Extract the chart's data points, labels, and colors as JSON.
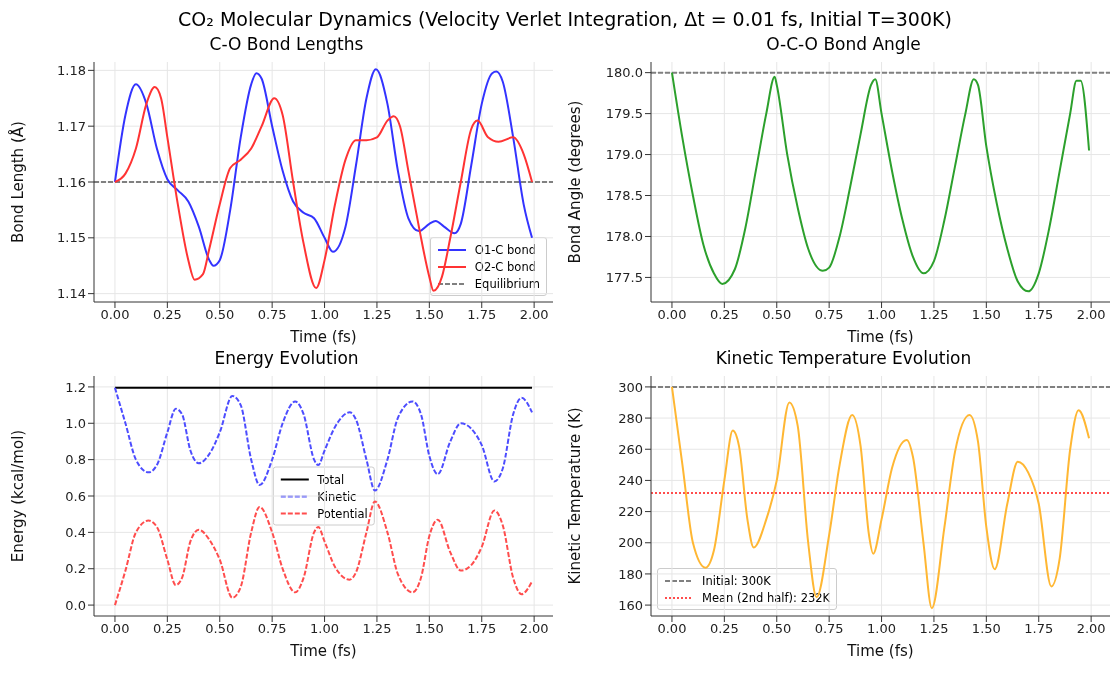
{
  "chart_data": [
    {
      "type": "line",
      "title": "C-O Bond Lengths",
      "xlabel": "Time (fs)",
      "ylabel": "Bond Length (Å)",
      "annotations": [
        "CO₂ Molecular Dynamics (Velocity Verlet Integration, Δt = 0.01 fs, Initial T=300K)"
      ],
      "xlim": [
        -0.1,
        2.09
      ],
      "xticks": [
        {
          "value": 0,
          "label": "0.00"
        },
        {
          "value": 0.25,
          "label": "0.25"
        },
        {
          "value": 0.5,
          "label": "0.50"
        },
        {
          "value": 0.75,
          "label": "0.75"
        },
        {
          "value": 1,
          "label": "1.00"
        },
        {
          "value": 1.25,
          "label": "1.25"
        },
        {
          "value": 1.5,
          "label": "1.50"
        },
        {
          "value": 1.75,
          "label": "1.75"
        },
        {
          "value": 2,
          "label": "2.00"
        }
      ],
      "ylim": [
        1.1385,
        1.1815
      ],
      "yticks": [
        {
          "value": 1.14,
          "label": "1.14"
        },
        {
          "value": 1.15,
          "label": "1.15"
        },
        {
          "value": 1.16,
          "label": "1.16"
        },
        {
          "value": 1.17,
          "label": "1.17"
        },
        {
          "value": 1.18,
          "label": "1.18"
        }
      ],
      "grid": true,
      "legend": "bottom right",
      "series": [
        {
          "name": "O1-C bond",
          "color": "#3333ff",
          "x": [
            0,
            0.05,
            0.1,
            0.15,
            0.2,
            0.25,
            0.3,
            0.35,
            0.4,
            0.45,
            0.47,
            0.5,
            0.55,
            0.6,
            0.65,
            0.675,
            0.7,
            0.75,
            0.8,
            0.85,
            0.9,
            0.95,
            1.0,
            1.04,
            1.1,
            1.15,
            1.2,
            1.245,
            1.3,
            1.35,
            1.4,
            1.45,
            1.5,
            1.53,
            1.57,
            1.62,
            1.65,
            1.7,
            1.75,
            1.8,
            1.82,
            1.85,
            1.9,
            1.95,
            1.99
          ],
          "values": [
            1.16,
            1.172,
            1.1775,
            1.174,
            1.166,
            1.1605,
            1.1585,
            1.1565,
            1.152,
            1.146,
            1.145,
            1.146,
            1.155,
            1.168,
            1.1775,
            1.1795,
            1.1785,
            1.17,
            1.162,
            1.1565,
            1.1545,
            1.1535,
            1.15,
            1.1475,
            1.152,
            1.163,
            1.175,
            1.1802,
            1.174,
            1.162,
            1.1535,
            1.1512,
            1.1525,
            1.153,
            1.152,
            1.1508,
            1.1525,
            1.163,
            1.174,
            1.1795,
            1.1798,
            1.178,
            1.168,
            1.156,
            1.15
          ]
        },
        {
          "name": "O2-C bond",
          "color": "#ff3333",
          "x": [
            0,
            0.05,
            0.1,
            0.15,
            0.19,
            0.22,
            0.25,
            0.3,
            0.35,
            0.38,
            0.42,
            0.45,
            0.5,
            0.55,
            0.6,
            0.65,
            0.7,
            0.76,
            0.8,
            0.85,
            0.9,
            0.96,
            1.0,
            1.05,
            1.1,
            1.15,
            1.2,
            1.25,
            1.3,
            1.33,
            1.36,
            1.4,
            1.45,
            1.5,
            1.52,
            1.56,
            1.6,
            1.65,
            1.7,
            1.73,
            1.78,
            1.83,
            1.9,
            1.95,
            1.99
          ],
          "values": [
            1.16,
            1.1615,
            1.166,
            1.174,
            1.177,
            1.175,
            1.168,
            1.156,
            1.146,
            1.1425,
            1.1435,
            1.148,
            1.156,
            1.1625,
            1.164,
            1.166,
            1.17,
            1.175,
            1.172,
            1.16,
            1.149,
            1.141,
            1.146,
            1.156,
            1.164,
            1.1675,
            1.1675,
            1.168,
            1.171,
            1.1718,
            1.17,
            1.162,
            1.152,
            1.143,
            1.1405,
            1.143,
            1.15,
            1.16,
            1.1695,
            1.171,
            1.168,
            1.1672,
            1.168,
            1.165,
            1.16
          ]
        }
      ],
      "ref_lines": [
        {
          "axis": "y",
          "value": 1.16,
          "label": "Equilibrium",
          "color": "#808080",
          "line_style": "dashed"
        }
      ]
    },
    {
      "type": "line",
      "title": "O-C-O Bond Angle",
      "xlabel": "Time (fs)",
      "ylabel": "Bond Angle (degrees)",
      "xlim": [
        -0.1,
        2.09
      ],
      "xticks": [
        {
          "value": 0,
          "label": "0.00"
        },
        {
          "value": 0.25,
          "label": "0.25"
        },
        {
          "value": 0.5,
          "label": "0.50"
        },
        {
          "value": 0.75,
          "label": "0.75"
        },
        {
          "value": 1,
          "label": "1.00"
        },
        {
          "value": 1.25,
          "label": "1.25"
        },
        {
          "value": 1.5,
          "label": "1.50"
        },
        {
          "value": 1.75,
          "label": "1.75"
        },
        {
          "value": 2,
          "label": "2.00"
        }
      ],
      "ylim": [
        177.2,
        180.13
      ],
      "yticks": [
        {
          "value": 177.5,
          "label": "177.5"
        },
        {
          "value": 178,
          "label": "178.0"
        },
        {
          "value": 178.5,
          "label": "178.5"
        },
        {
          "value": 179,
          "label": "179.0"
        },
        {
          "value": 179.5,
          "label": "179.5"
        },
        {
          "value": 180,
          "label": "180.0"
        }
      ],
      "grid": true,
      "series": [
        {
          "color": "#2ca02c",
          "x": [
            0,
            0.05,
            0.1,
            0.15,
            0.2,
            0.24,
            0.3,
            0.35,
            0.4,
            0.45,
            0.49,
            0.5,
            0.55,
            0.6,
            0.65,
            0.72,
            0.75,
            0.8,
            0.85,
            0.9,
            0.95,
            0.97,
            1.0,
            1.05,
            1.1,
            1.15,
            1.2,
            1.25,
            1.3,
            1.35,
            1.4,
            1.44,
            1.46,
            1.5,
            1.55,
            1.6,
            1.65,
            1.7,
            1.75,
            1.8,
            1.85,
            1.9,
            1.93,
            1.95,
            1.99
          ],
          "values": [
            180.0,
            179.2,
            178.5,
            177.9,
            177.55,
            177.42,
            177.6,
            178.1,
            178.8,
            179.5,
            179.95,
            179.85,
            179.0,
            178.35,
            177.85,
            177.58,
            177.62,
            178.0,
            178.6,
            179.25,
            179.85,
            179.92,
            179.5,
            178.8,
            178.2,
            177.75,
            177.55,
            177.7,
            178.2,
            178.85,
            179.5,
            179.92,
            179.85,
            179.1,
            178.4,
            177.85,
            177.45,
            177.33,
            177.55,
            178.1,
            178.8,
            179.5,
            179.9,
            179.9,
            179.05
          ]
        }
      ],
      "ref_lines": [
        {
          "axis": "y",
          "value": 180,
          "color": "#808080",
          "line_style": "dashed"
        }
      ]
    },
    {
      "type": "line",
      "title": "Energy Evolution",
      "xlabel": "Time (fs)",
      "ylabel": "Energy (kcal/mol)",
      "xlim": [
        -0.1,
        2.09
      ],
      "xticks": [
        {
          "value": 0,
          "label": "0.00"
        },
        {
          "value": 0.25,
          "label": "0.25"
        },
        {
          "value": 0.5,
          "label": "0.50"
        },
        {
          "value": 0.75,
          "label": "0.75"
        },
        {
          "value": 1,
          "label": "1.00"
        },
        {
          "value": 1.25,
          "label": "1.25"
        },
        {
          "value": 1.5,
          "label": "1.50"
        },
        {
          "value": 1.75,
          "label": "1.75"
        },
        {
          "value": 2,
          "label": "2.00"
        }
      ],
      "ylim": [
        -0.06,
        1.26
      ],
      "yticks": [
        {
          "value": 0,
          "label": "0.0"
        },
        {
          "value": 0.2,
          "label": "0.2"
        },
        {
          "value": 0.4,
          "label": "0.4"
        },
        {
          "value": 0.6,
          "label": "0.6"
        },
        {
          "value": 0.8,
          "label": "0.8"
        },
        {
          "value": 1,
          "label": "1.0"
        },
        {
          "value": 1.2,
          "label": "1.2"
        }
      ],
      "grid": true,
      "legend": "center",
      "series": [
        {
          "name": "Total",
          "color": "#000000",
          "line_style": "solid",
          "x": [
            0,
            0.5,
            1.0,
            1.5,
            1.99
          ],
          "values": [
            1.195,
            1.195,
            1.195,
            1.195,
            1.195
          ]
        },
        {
          "name": "Kinetic",
          "color": "#4d4dff",
          "line_style": "dashed",
          "x": [
            0,
            0.05,
            0.1,
            0.16,
            0.2,
            0.25,
            0.29,
            0.32,
            0.36,
            0.4,
            0.45,
            0.5,
            0.56,
            0.6,
            0.65,
            0.69,
            0.75,
            0.8,
            0.86,
            0.9,
            0.95,
            0.97,
            1.0,
            1.05,
            1.12,
            1.15,
            1.2,
            1.24,
            1.3,
            1.35,
            1.42,
            1.46,
            1.5,
            1.54,
            1.6,
            1.65,
            1.7,
            1.75,
            1.81,
            1.85,
            1.9,
            1.94,
            1.99
          ],
          "values": [
            1.195,
            1.0,
            0.8,
            0.73,
            0.77,
            0.95,
            1.08,
            1.05,
            0.85,
            0.78,
            0.83,
            0.95,
            1.15,
            1.1,
            0.8,
            0.66,
            0.8,
            1.0,
            1.12,
            1.05,
            0.8,
            0.77,
            0.85,
            0.98,
            1.06,
            1.02,
            0.8,
            0.63,
            0.8,
            1.03,
            1.12,
            1.05,
            0.82,
            0.72,
            0.9,
            1.0,
            0.97,
            0.88,
            0.68,
            0.75,
            1.05,
            1.14,
            1.06
          ]
        },
        {
          "name": "Potential",
          "color": "#ff4d4d",
          "line_style": "dashed",
          "x": [
            0,
            0.05,
            0.1,
            0.16,
            0.2,
            0.25,
            0.29,
            0.32,
            0.36,
            0.4,
            0.45,
            0.5,
            0.56,
            0.6,
            0.65,
            0.69,
            0.75,
            0.8,
            0.86,
            0.9,
            0.95,
            0.97,
            1.0,
            1.05,
            1.12,
            1.15,
            1.2,
            1.24,
            1.3,
            1.35,
            1.42,
            1.46,
            1.5,
            1.54,
            1.6,
            1.65,
            1.7,
            1.75,
            1.81,
            1.85,
            1.9,
            1.94,
            1.99
          ],
          "values": [
            0,
            0.19,
            0.4,
            0.465,
            0.43,
            0.25,
            0.11,
            0.15,
            0.35,
            0.415,
            0.36,
            0.25,
            0.04,
            0.1,
            0.4,
            0.54,
            0.4,
            0.2,
            0.07,
            0.15,
            0.4,
            0.43,
            0.35,
            0.21,
            0.14,
            0.18,
            0.4,
            0.57,
            0.4,
            0.17,
            0.07,
            0.15,
            0.38,
            0.47,
            0.29,
            0.19,
            0.22,
            0.32,
            0.52,
            0.44,
            0.15,
            0.06,
            0.13
          ]
        }
      ]
    },
    {
      "type": "line",
      "title": "Kinetic Temperature Evolution",
      "xlabel": "Time (fs)",
      "ylabel": "Kinetic Temperature (K)",
      "xlim": [
        -0.1,
        2.09
      ],
      "xticks": [
        {
          "value": 0,
          "label": "0.00"
        },
        {
          "value": 0.25,
          "label": "0.25"
        },
        {
          "value": 0.5,
          "label": "0.50"
        },
        {
          "value": 0.75,
          "label": "0.75"
        },
        {
          "value": 1,
          "label": "1.00"
        },
        {
          "value": 1.25,
          "label": "1.25"
        },
        {
          "value": 1.5,
          "label": "1.50"
        },
        {
          "value": 1.75,
          "label": "1.75"
        },
        {
          "value": 2,
          "label": "2.00"
        }
      ],
      "ylim": [
        153,
        307
      ],
      "yticks": [
        160,
        180,
        200,
        220,
        240,
        260,
        280,
        300
      ],
      "grid": true,
      "legend": "bottom left",
      "series": [
        {
          "color": "#ffb733",
          "x": [
            0,
            0.05,
            0.1,
            0.16,
            0.2,
            0.25,
            0.29,
            0.32,
            0.36,
            0.39,
            0.45,
            0.5,
            0.56,
            0.6,
            0.65,
            0.69,
            0.75,
            0.8,
            0.86,
            0.9,
            0.94,
            0.96,
            1.0,
            1.05,
            1.12,
            1.15,
            1.2,
            1.24,
            1.3,
            1.35,
            1.42,
            1.46,
            1.5,
            1.54,
            1.6,
            1.65,
            1.7,
            1.75,
            1.81,
            1.85,
            1.9,
            1.94,
            1.99
          ],
          "values": [
            300,
            250,
            200,
            184,
            195,
            240,
            272,
            262,
            215,
            197,
            215,
            240,
            290,
            275,
            200,
            165,
            205,
            250,
            282,
            262,
            205,
            193,
            215,
            248,
            266,
            255,
            200,
            158,
            210,
            258,
            282,
            265,
            210,
            183,
            225,
            252,
            245,
            225,
            172,
            190,
            260,
            285,
            267
          ]
        }
      ],
      "ref_lines": [
        {
          "axis": "y",
          "value": 300,
          "label": "Initial: 300K",
          "color": "#808080",
          "line_style": "dashed"
        },
        {
          "axis": "y",
          "value": 232,
          "label": "Mean (2nd half): 232K",
          "color": "#ff4d4d",
          "line_style": "dotted"
        }
      ]
    }
  ]
}
